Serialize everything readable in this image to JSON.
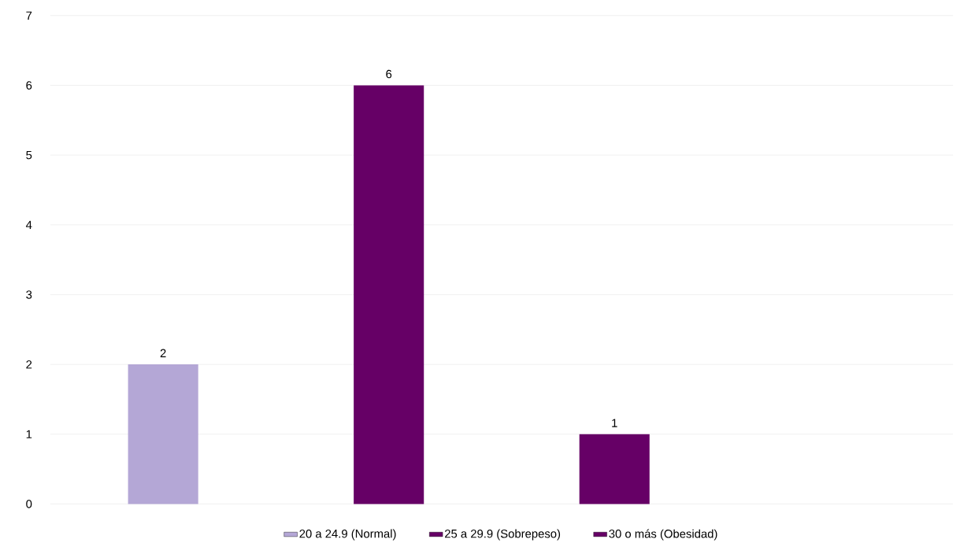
{
  "chart_data": {
    "type": "bar",
    "categories": [
      null,
      null,
      null,
      null
    ],
    "series": [
      {
        "name": "20 a 24.9 (Normal)",
        "color": "#b4a7d6",
        "values": [
          2,
          null,
          null,
          null
        ]
      },
      {
        "name": "25 a 29.9 (Sobrepeso)",
        "color": "#660066",
        "values": [
          null,
          6,
          null,
          null
        ]
      },
      {
        "name": "30 o más (Obesidad)",
        "color": "#660066",
        "values": [
          null,
          null,
          1,
          null
        ]
      }
    ],
    "ylim": [
      0,
      7
    ],
    "yticks": [
      0,
      1,
      2,
      3,
      4,
      5,
      6,
      7
    ],
    "grid": "y",
    "legend": "bottom",
    "data_labels": true,
    "tick_labels": "y"
  }
}
